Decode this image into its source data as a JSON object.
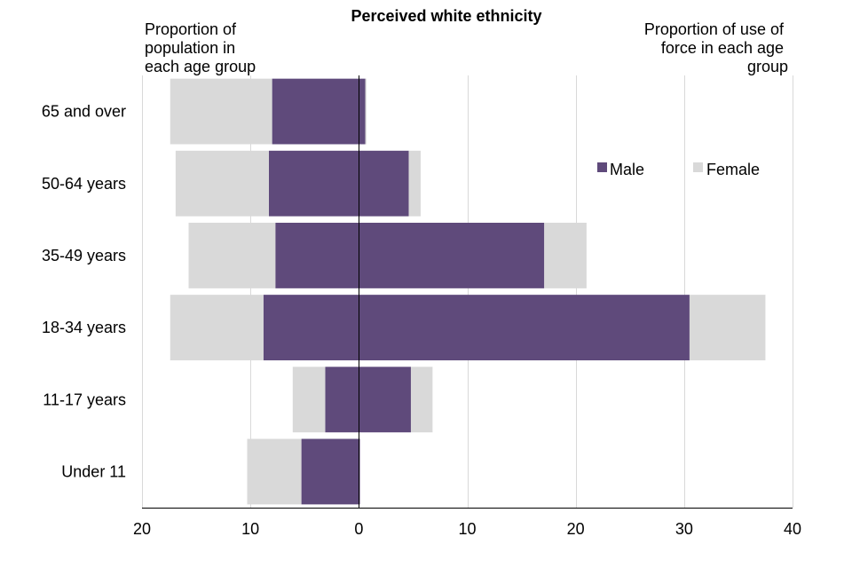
{
  "chart_data": {
    "type": "bar",
    "orientation": "horizontal-diverging",
    "title": "Perceived white ethnicity",
    "left_label": [
      "Proportion of",
      "population in",
      "each age group"
    ],
    "right_label": [
      "Proportion of use of",
      "force in each age",
      "group"
    ],
    "categories": [
      "65 and over",
      "50-64 years",
      "35-49 years",
      "18-34 years",
      "11-17 years",
      "Under 11"
    ],
    "xlim": [
      -20,
      40
    ],
    "xticks": [
      {
        "value": -20,
        "label": "20"
      },
      {
        "value": -10,
        "label": "10"
      },
      {
        "value": 0,
        "label": "0"
      },
      {
        "value": 10,
        "label": "10"
      },
      {
        "value": 20,
        "label": "20"
      },
      {
        "value": 30,
        "label": "30"
      },
      {
        "value": 40,
        "label": "40"
      }
    ],
    "grid": true,
    "legend": {
      "position": "top-right",
      "entries": [
        "Male",
        "Female"
      ]
    },
    "series": [
      {
        "name": "Population male",
        "side": "left",
        "legend": "Male",
        "color": "#5f4a7b",
        "values": [
          8.0,
          8.3,
          7.7,
          8.8,
          3.1,
          5.3
        ]
      },
      {
        "name": "Population female",
        "side": "left",
        "legend": "Female",
        "color": "#d9d9d9",
        "values": [
          9.4,
          8.6,
          8.0,
          8.6,
          3.0,
          5.0
        ]
      },
      {
        "name": "Use of force male",
        "side": "right",
        "legend": "Male",
        "color": "#5f4a7b",
        "values": [
          0.6,
          4.6,
          17.1,
          30.5,
          4.8,
          0.1
        ]
      },
      {
        "name": "Use of force female",
        "side": "right",
        "legend": "Female",
        "color": "#d9d9d9",
        "values": [
          0.1,
          1.1,
          3.9,
          7.0,
          2.0,
          0.0
        ]
      }
    ]
  }
}
